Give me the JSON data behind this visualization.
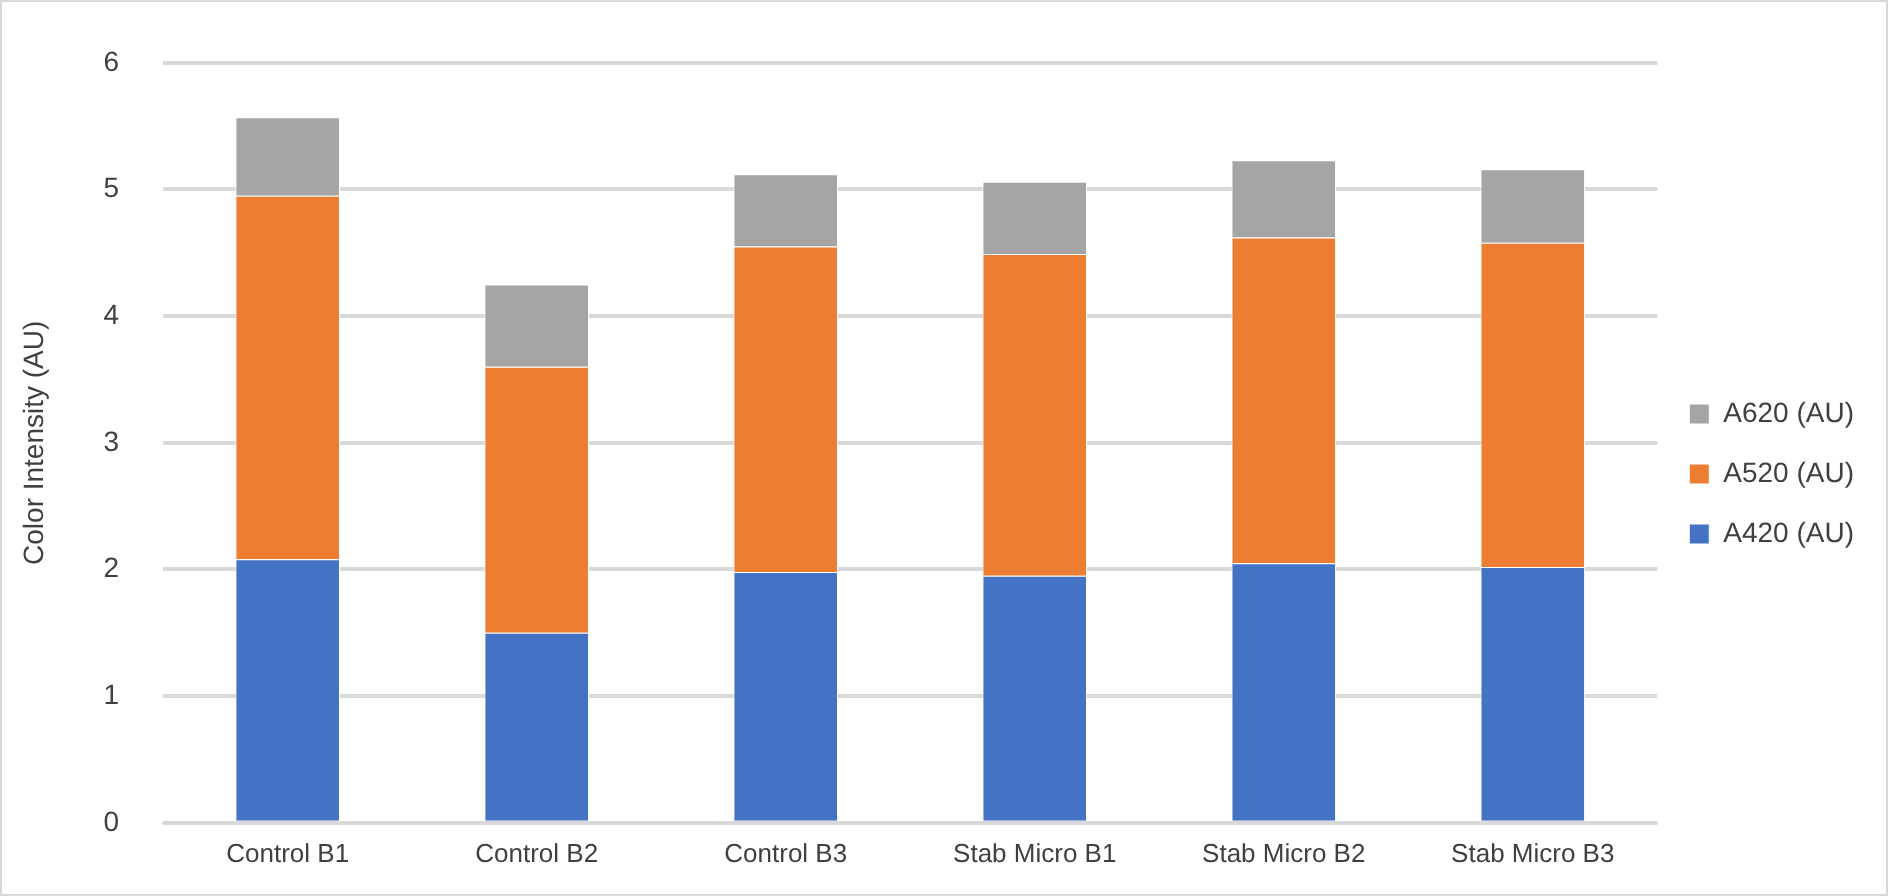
{
  "chart_data": {
    "type": "bar",
    "stacked": true,
    "ylabel": "Color Intensity (AU)",
    "categories": [
      "Control B1",
      "Control B2",
      "Control B3",
      "Stab Micro B1",
      "Stab Micro B2",
      "Stab Micro B3"
    ],
    "series": [
      {
        "name": "A420 (AU)",
        "color": "#4472c4",
        "values": [
          2.08,
          1.5,
          1.98,
          1.95,
          2.05,
          2.02
        ]
      },
      {
        "name": "A520 (AU)",
        "color": "#ed7d31",
        "values": [
          2.87,
          2.1,
          2.57,
          2.54,
          2.57,
          2.56
        ]
      },
      {
        "name": "A620 (AU)",
        "color": "#a5a5a5",
        "values": [
          0.62,
          0.65,
          0.57,
          0.57,
          0.61,
          0.58
        ]
      }
    ],
    "ylim": [
      0,
      6
    ],
    "yticks": [
      0,
      1,
      2,
      3,
      4,
      5,
      6
    ],
    "grid": "y",
    "legend": "right"
  }
}
